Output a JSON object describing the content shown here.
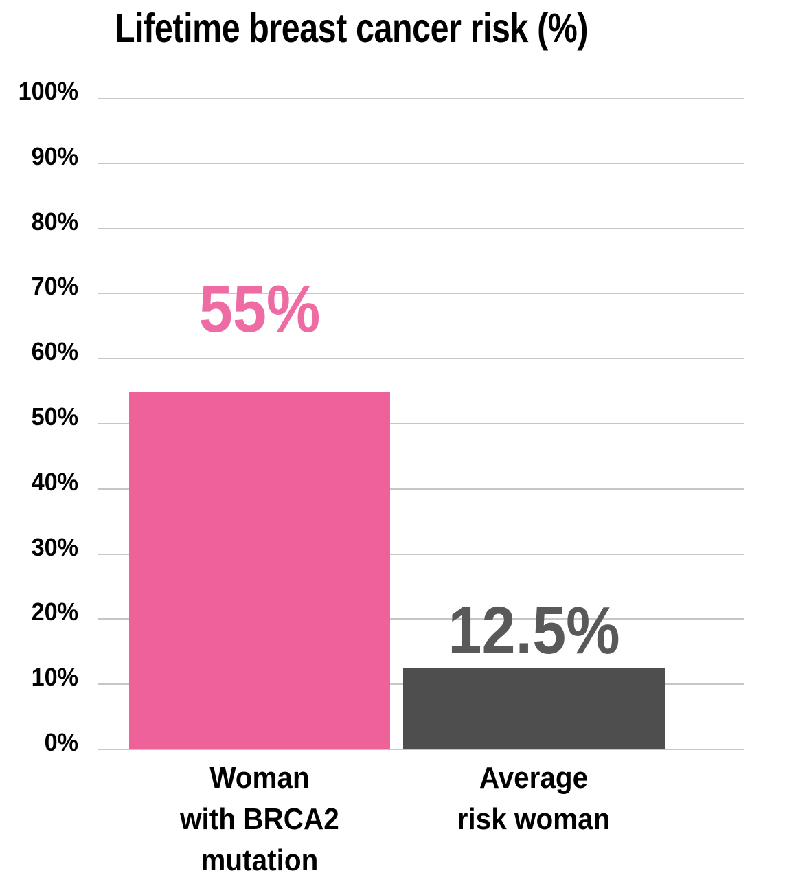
{
  "chart_data": {
    "type": "bar",
    "title": "Lifetime breast cancer risk (%)",
    "categories": [
      [
        "Woman",
        "with BRCA2",
        "mutation"
      ],
      [
        "Average",
        "risk woman"
      ]
    ],
    "category_names": [
      "woman-with-brca2-mutation",
      "average-risk-woman"
    ],
    "values": [
      55,
      12.5
    ],
    "value_labels": [
      "55%",
      "12.5%"
    ],
    "yticks": [
      {
        "value": 100,
        "label": "100%"
      },
      {
        "value": 90,
        "label": "90%"
      },
      {
        "value": 80,
        "label": "80%"
      },
      {
        "value": 70,
        "label": "70%"
      },
      {
        "value": 60,
        "label": "60%"
      },
      {
        "value": 50,
        "label": "50%"
      },
      {
        "value": 40,
        "label": "40%"
      },
      {
        "value": 30,
        "label": "30%"
      },
      {
        "value": 20,
        "label": "20%"
      },
      {
        "value": 10,
        "label": "10%"
      },
      {
        "value": 0,
        "label": "0%"
      }
    ],
    "ylim": [
      0,
      100
    ],
    "grid": true,
    "legend": false,
    "colors": {
      "bars": [
        "#EE6199",
        "#4F4E4F"
      ],
      "value_labels": [
        "#EE6BA3",
        "#595959"
      ],
      "gridline": "#C6C6C6",
      "title": "#000000",
      "tick_labels": "#000000",
      "category_labels": "#000000",
      "background": "#FFFFFF"
    }
  }
}
